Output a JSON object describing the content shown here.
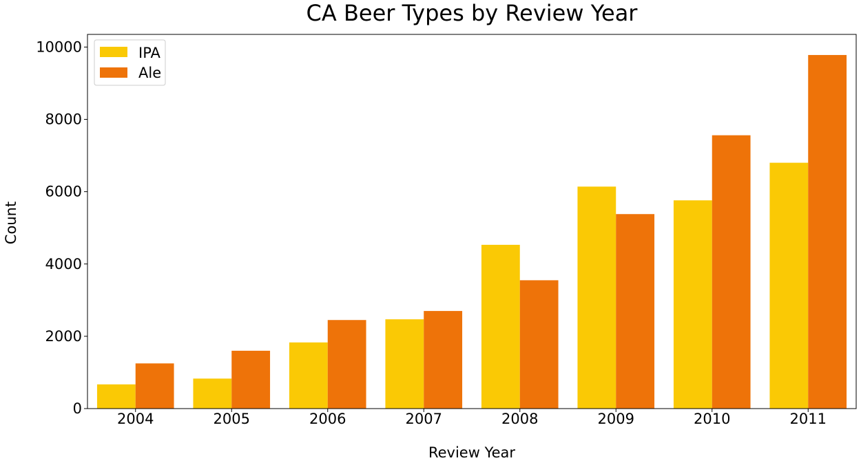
{
  "chart_data": {
    "type": "bar",
    "title": "CA Beer Types by Review Year",
    "xlabel": "Review Year",
    "ylabel": "Count",
    "categories": [
      "2004",
      "2005",
      "2006",
      "2007",
      "2008",
      "2009",
      "2010",
      "2011"
    ],
    "series": [
      {
        "name": "IPA",
        "color": "#FAC905",
        "values": [
          670,
          830,
          1830,
          2470,
          4530,
          6140,
          5760,
          6800
        ]
      },
      {
        "name": "Ale",
        "color": "#EE7309",
        "values": [
          1250,
          1600,
          2450,
          2700,
          3550,
          5380,
          7560,
          9780
        ]
      }
    ],
    "ylim": [
      0,
      10350
    ],
    "yticks": [
      0,
      2000,
      4000,
      6000,
      8000,
      10000
    ],
    "grid": false,
    "legend_position": "top-left"
  }
}
